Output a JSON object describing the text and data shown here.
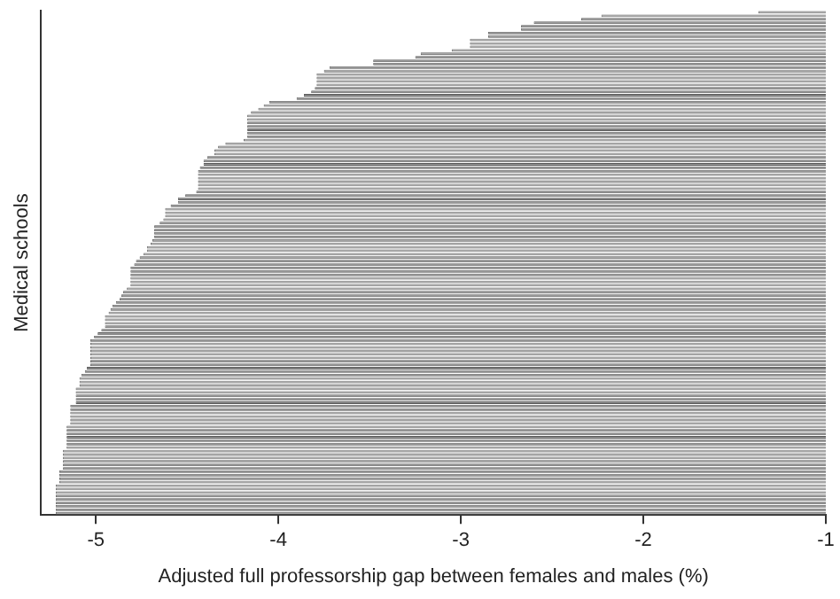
{
  "chart_data": {
    "type": "bar",
    "orientation": "horizontal",
    "xlabel": "Adjusted full professorship gap between females and males (%)",
    "ylabel": "Medical schools",
    "color": "#9a9a9a",
    "xlim": [
      -5.3,
      -1
    ],
    "xticks": [
      -5,
      -4,
      -3,
      -2,
      -1
    ],
    "tick_labels": "x",
    "grid": false,
    "legend": false,
    "categories": [
      null,
      null,
      null,
      null,
      null,
      null,
      null,
      null,
      null,
      null,
      null,
      null,
      null,
      null,
      null,
      null,
      null,
      null,
      null,
      null,
      null,
      null,
      null,
      null,
      null,
      null,
      null,
      null,
      null,
      null,
      null,
      null,
      null,
      null,
      null,
      null,
      null,
      null,
      null,
      null,
      null,
      null,
      null,
      null,
      null,
      null,
      null,
      null,
      null,
      null,
      null,
      null,
      null,
      null,
      null,
      null,
      null,
      null,
      null,
      null,
      null,
      null,
      null,
      null,
      null,
      null,
      null,
      null,
      null,
      null,
      null,
      null,
      null,
      null,
      null,
      null,
      null,
      null,
      null,
      null,
      null,
      null,
      null,
      null,
      null,
      null,
      null,
      null,
      null,
      null,
      null,
      null,
      null,
      null,
      null,
      null,
      null,
      null,
      null,
      null,
      null,
      null,
      null,
      null,
      null,
      null,
      null,
      null,
      null,
      null,
      null,
      null,
      null,
      null,
      null,
      null,
      null,
      null,
      null,
      null,
      null,
      null,
      null,
      null,
      null,
      null,
      null,
      null,
      null,
      null,
      null,
      null,
      null,
      null,
      null,
      null,
      null,
      null,
      null,
      null,
      null,
      null,
      null,
      null,
      null,
      null
    ],
    "values": [
      -1.37,
      -2.23,
      -2.34,
      -2.6,
      -2.67,
      -2.67,
      -2.85,
      -2.85,
      -2.95,
      -2.95,
      -2.95,
      -3.05,
      -3.22,
      -3.25,
      -3.48,
      -3.48,
      -3.72,
      -3.75,
      -3.79,
      -3.79,
      -3.79,
      -3.79,
      -3.8,
      -3.82,
      -3.86,
      -3.9,
      -4.05,
      -4.08,
      -4.11,
      -4.15,
      -4.17,
      -4.17,
      -4.17,
      -4.17,
      -4.17,
      -4.17,
      -4.17,
      -4.19,
      -4.29,
      -4.33,
      -4.35,
      -4.35,
      -4.39,
      -4.41,
      -4.41,
      -4.43,
      -4.44,
      -4.44,
      -4.44,
      -4.44,
      -4.44,
      -4.44,
      -4.45,
      -4.51,
      -4.55,
      -4.55,
      -4.59,
      -4.62,
      -4.62,
      -4.62,
      -4.63,
      -4.65,
      -4.68,
      -4.68,
      -4.68,
      -4.68,
      -4.69,
      -4.7,
      -4.72,
      -4.72,
      -4.74,
      -4.76,
      -4.78,
      -4.79,
      -4.81,
      -4.81,
      -4.81,
      -4.81,
      -4.81,
      -4.81,
      -4.83,
      -4.85,
      -4.86,
      -4.87,
      -4.89,
      -4.91,
      -4.92,
      -4.93,
      -4.95,
      -4.95,
      -4.95,
      -4.95,
      -4.97,
      -4.99,
      -5.01,
      -5.03,
      -5.03,
      -5.03,
      -5.03,
      -5.03,
      -5.03,
      -5.03,
      -5.03,
      -5.05,
      -5.06,
      -5.08,
      -5.09,
      -5.09,
      -5.09,
      -5.11,
      -5.11,
      -5.11,
      -5.11,
      -5.11,
      -5.14,
      -5.14,
      -5.14,
      -5.14,
      -5.14,
      -5.14,
      -5.16,
      -5.16,
      -5.16,
      -5.16,
      -5.16,
      -5.16,
      -5.16,
      -5.18,
      -5.18,
      -5.18,
      -5.18,
      -5.18,
      -5.18,
      -5.2,
      -5.2,
      -5.2,
      -5.2,
      -5.22,
      -5.22,
      -5.22,
      -5.22,
      -5.22,
      -5.22,
      -5.22,
      -5.22,
      -5.22
    ]
  }
}
